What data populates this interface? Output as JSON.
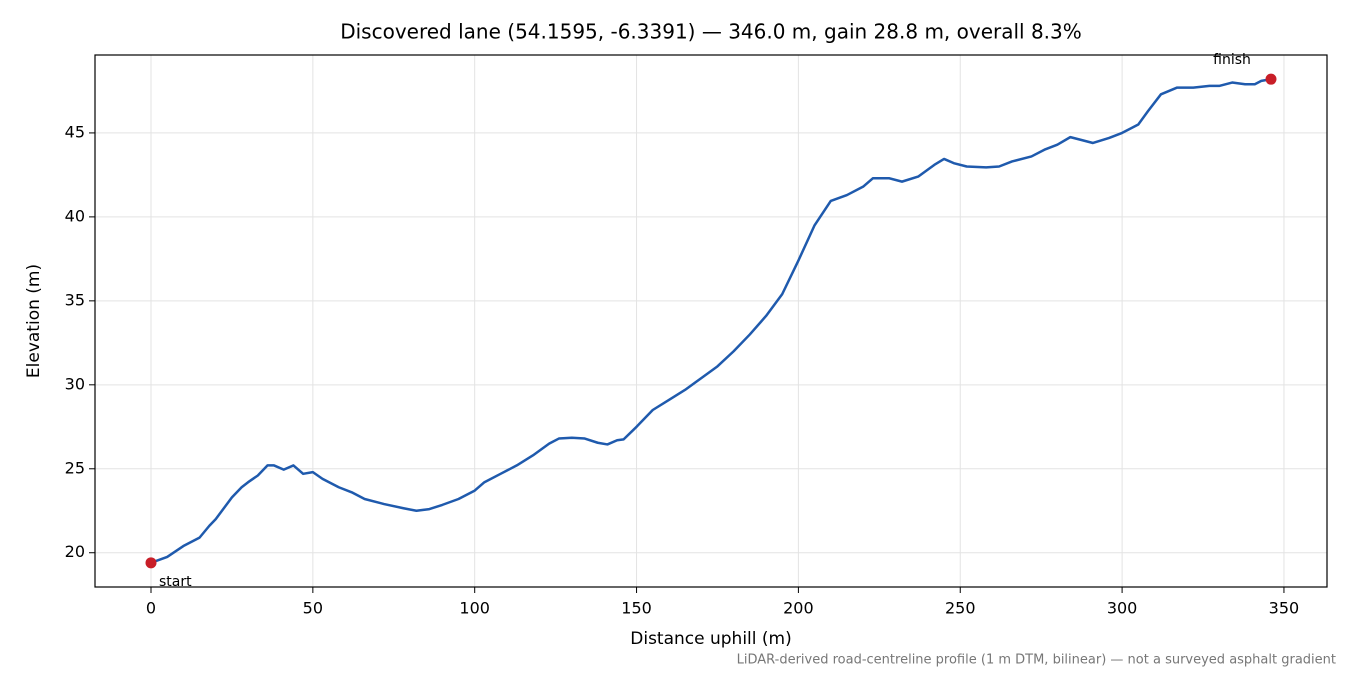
{
  "chart_data": {
    "type": "line",
    "title": "Discovered lane (54.1595, -6.3391) — 346.0 m, gain 28.8 m, overall 8.3%",
    "xlabel": "Distance uphill (m)",
    "ylabel": "Elevation (m)",
    "footnote": "LiDAR-derived road-centreline profile (1 m DTM, bilinear) — not a surveyed asphalt gradient",
    "x": [
      0,
      5,
      10,
      15,
      18,
      20,
      25,
      28,
      30,
      33,
      36,
      38,
      41,
      44,
      47,
      50,
      53,
      58,
      62,
      66,
      72,
      78,
      82,
      86,
      90,
      95,
      100,
      103,
      108,
      113,
      118,
      123,
      126,
      130,
      134,
      138,
      141,
      144,
      146,
      150,
      155,
      160,
      165,
      170,
      175,
      180,
      185,
      190,
      195,
      200,
      205,
      210,
      215,
      220,
      223,
      228,
      232,
      237,
      242,
      245,
      248,
      252,
      258,
      262,
      266,
      272,
      276,
      280,
      284,
      287,
      291,
      296,
      300,
      305,
      308,
      312,
      317,
      322,
      327,
      330,
      334,
      338,
      341,
      343,
      346
    ],
    "series": [
      {
        "name": "Elevation",
        "color": "#1f5aad",
        "values": [
          19.4,
          19.75,
          20.4,
          20.9,
          21.6,
          22.0,
          23.3,
          23.9,
          24.2,
          24.6,
          25.2,
          25.2,
          24.95,
          25.2,
          24.7,
          24.8,
          24.4,
          23.9,
          23.6,
          23.2,
          22.9,
          22.65,
          22.5,
          22.6,
          22.85,
          23.2,
          23.7,
          24.2,
          24.7,
          25.2,
          25.8,
          26.5,
          26.8,
          26.85,
          26.8,
          26.55,
          26.45,
          26.7,
          26.75,
          27.5,
          28.5,
          29.1,
          29.7,
          30.4,
          31.1,
          32.0,
          33.0,
          34.1,
          35.4,
          37.4,
          39.5,
          40.95,
          41.3,
          41.8,
          42.3,
          42.3,
          42.1,
          42.4,
          43.1,
          43.45,
          43.2,
          43.0,
          42.95,
          43.0,
          43.3,
          43.6,
          44.0,
          44.3,
          44.75,
          44.6,
          44.4,
          44.7,
          45.0,
          45.5,
          46.3,
          47.3,
          47.7,
          47.7,
          47.8,
          47.8,
          48.0,
          47.9,
          47.9,
          48.1,
          48.2
        ]
      }
    ],
    "markers": {
      "x": [
        0,
        346
      ],
      "values": [
        19.4,
        48.2
      ],
      "labels": [
        "start",
        "finish"
      ],
      "color": "#c81e28"
    },
    "xlim": [
      -17.3,
      363.3
    ],
    "ylim": [
      17.96,
      49.64
    ],
    "xticks": [
      0,
      50,
      100,
      150,
      200,
      250,
      300,
      350
    ],
    "yticks": [
      20,
      25,
      30,
      35,
      40,
      45
    ],
    "grid": true
  }
}
